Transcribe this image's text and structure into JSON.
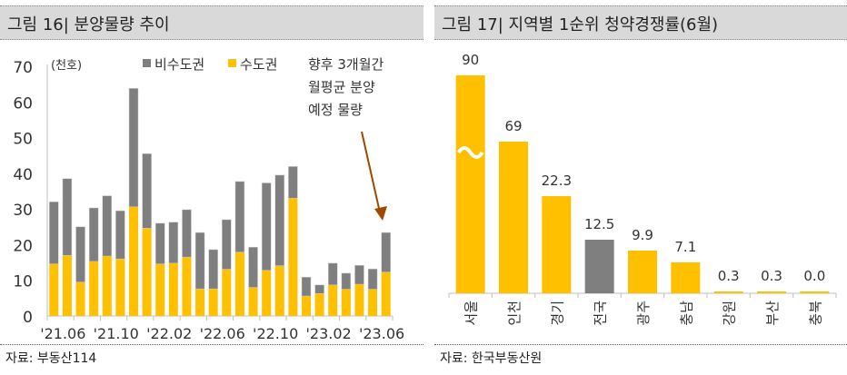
{
  "left": {
    "title": "그림 16| 분양물량 추이",
    "source": "자료: 부동산114",
    "unit": "(천호)",
    "legend": [
      {
        "label": "비수도권",
        "color": "#7f7f7f"
      },
      {
        "label": "수도권",
        "color": "#ffc000"
      }
    ],
    "annotation": [
      "향후 3개월간",
      "월평균 분양",
      "예정 물량"
    ],
    "annotation_arrow_color": "#9c4a00"
  },
  "right": {
    "title": "그림 17| 지역별 1순위 청약경쟁률(6월)",
    "source": "자료: 한국부동산원"
  },
  "chart_data": [
    {
      "type": "bar",
      "stacked": true,
      "title": "분양물량 추이",
      "ylabel": "(천호)",
      "ylim": [
        0,
        70
      ],
      "yticks": [
        0,
        10,
        20,
        30,
        40,
        50,
        60,
        70
      ],
      "xtick_labels": [
        "'21.06",
        "'21.10",
        "'22.02",
        "'22.06",
        "'22.10",
        "'23.02",
        "'23.06"
      ],
      "categories": [
        "'21.06",
        "'21.07",
        "'21.08",
        "'21.09",
        "'21.10",
        "'21.11",
        "'21.12",
        "'22.01",
        "'22.02",
        "'22.03",
        "'22.04",
        "'22.05",
        "'22.06",
        "'22.07",
        "'22.08",
        "'22.09",
        "'22.10",
        "'22.11",
        "'22.12",
        "'23.01",
        "'23.02",
        "'23.03",
        "'23.04",
        "'23.05",
        "'23.06",
        "향후3개월평균"
      ],
      "series": [
        {
          "name": "수도권",
          "color": "#ffc000",
          "values": [
            14.6,
            17.0,
            9.5,
            15.3,
            16.8,
            16.0,
            30.6,
            24.6,
            14.6,
            14.8,
            16.5,
            7.6,
            7.6,
            13.1,
            17.9,
            8.0,
            12.8,
            14.1,
            33.0,
            5.6,
            6.3,
            8.7,
            7.5,
            8.9,
            7.5,
            12.3
          ]
        },
        {
          "name": "비수도권",
          "color": "#7f7f7f",
          "values": [
            17.4,
            21.5,
            15.5,
            15.0,
            16.9,
            13.5,
            33.2,
            20.9,
            11.4,
            11.5,
            13.3,
            15.8,
            11.0,
            13.9,
            19.8,
            11.3,
            24.5,
            25.4,
            8.9,
            5.3,
            2.4,
            6.1,
            4.5,
            5.3,
            5.7,
            11.1
          ]
        }
      ],
      "totals": [
        32.0,
        38.5,
        25.0,
        30.3,
        33.7,
        29.5,
        63.8,
        45.5,
        26.0,
        26.3,
        29.8,
        23.4,
        18.6,
        27.0,
        37.7,
        19.3,
        37.3,
        39.5,
        41.9,
        10.9,
        8.7,
        14.8,
        12.0,
        14.2,
        13.2,
        23.4
      ],
      "legend": [
        "비수도권",
        "수도권"
      ],
      "legend_position": "top",
      "annotation": "향후 3개월간 월평균 분양 예정 물량",
      "grid": false
    },
    {
      "type": "bar",
      "title": "지역별 1순위 청약경쟁률(6월)",
      "categories": [
        "서울",
        "인천",
        "경기",
        "전국",
        "광주",
        "충남",
        "강원",
        "부산",
        "충북"
      ],
      "values": [
        90,
        69,
        22.3,
        12.5,
        9.9,
        7.1,
        0.3,
        0.3,
        0.0
      ],
      "value_labels": [
        "90",
        "69",
        "22.3",
        "12.5",
        "9.9",
        "7.1",
        "0.3",
        "0.3",
        "0.0"
      ],
      "colors": [
        "#ffc000",
        "#ffc000",
        "#ffc000",
        "#7f7f7f",
        "#ffc000",
        "#ffc000",
        "#ffc000",
        "#ffc000",
        "#ffc000"
      ],
      "axis_break": [
        "서울",
        "인천"
      ],
      "grid": false,
      "yaxis_visible": false
    }
  ]
}
